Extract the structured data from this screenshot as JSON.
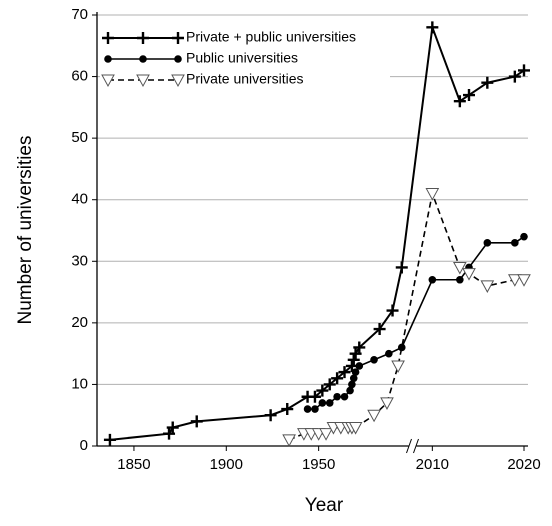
{
  "chart_data": {
    "type": "line",
    "x_label": "Year",
    "y_label": "Number of universities",
    "xlim": [
      1830,
      2020
    ],
    "xbreak": [
      2000,
      2008
    ],
    "xticks": [
      1850,
      1900,
      1950,
      2010,
      2020
    ],
    "ylim": [
      0,
      70
    ],
    "yticks": [
      0,
      10,
      20,
      30,
      40,
      50,
      60,
      70
    ],
    "grid": true,
    "legend": "upper left",
    "series": [
      {
        "name": "Private + public universities",
        "color": "#000000",
        "marker": "plus",
        "linestyle": "solid",
        "x": [
          1837,
          1869,
          1871,
          1884,
          1924,
          1933,
          1944,
          1948,
          1952,
          1956,
          1960,
          1964,
          1968,
          1969,
          1970,
          1972,
          1983,
          1990,
          1995,
          2010,
          2013,
          2014,
          2016,
          2019,
          2020
        ],
        "values": [
          1,
          2,
          3,
          4,
          5,
          6,
          8,
          8,
          9,
          10,
          11,
          12,
          13,
          14,
          15,
          16,
          19,
          22,
          29,
          68,
          56,
          57,
          59,
          60,
          61
        ]
      },
      {
        "name": "Public universities",
        "color": "#000000",
        "marker": "circle",
        "linestyle": "solid",
        "x": [
          1944,
          1948,
          1952,
          1956,
          1960,
          1964,
          1967,
          1968,
          1969,
          1970,
          1972,
          1980,
          1988,
          1995,
          2010,
          2013,
          2014,
          2016,
          2019,
          2020
        ],
        "values": [
          6,
          6,
          7,
          7,
          8,
          8,
          9,
          10,
          11,
          12,
          13,
          14,
          15,
          16,
          27,
          27,
          29,
          33,
          33,
          34
        ]
      },
      {
        "name": "Private universities",
        "color": "#000000",
        "marker": "triangle-down",
        "linestyle": "dashed",
        "x": [
          1934,
          1942,
          1946,
          1950,
          1954,
          1958,
          1962,
          1966,
          1968,
          1970,
          1980,
          1987,
          1993,
          2010,
          2013,
          2014,
          2016,
          2019,
          2020
        ],
        "values": [
          1,
          2,
          2,
          2,
          2,
          3,
          3,
          3,
          3,
          3,
          5,
          7,
          13,
          41,
          29,
          28,
          26,
          27,
          27
        ]
      }
    ]
  }
}
